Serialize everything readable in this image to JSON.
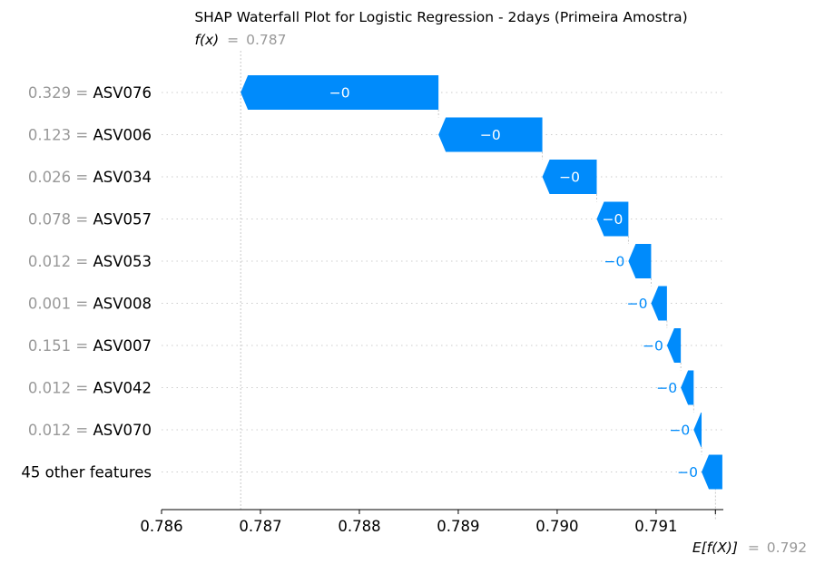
{
  "chart_data": {
    "type": "waterfall",
    "title": "SHAP Waterfall Plot for Logistic Regression - 2days (Primeira Amostra)",
    "fx": {
      "label": "f(x)",
      "eq": "=",
      "value": "0.787",
      "x": 0.7868
    },
    "efx": {
      "label": "E[f(X)]",
      "eq": "=",
      "value": "0.792",
      "x": 0.7916
    },
    "features": [
      {
        "value": "0.329",
        "eq": "=",
        "name": "ASV076",
        "label": "−0",
        "start": 0.7888,
        "end": 0.7868
      },
      {
        "value": "0.123",
        "eq": "=",
        "name": "ASV006",
        "label": "−0",
        "start": 0.78985,
        "end": 0.7888
      },
      {
        "value": "0.026",
        "eq": "=",
        "name": "ASV034",
        "label": "−0",
        "start": 0.7904,
        "end": 0.78985
      },
      {
        "value": "0.078",
        "eq": "=",
        "name": "ASV057",
        "label": "−0",
        "start": 0.79072,
        "end": 0.7904
      },
      {
        "value": "0.012",
        "eq": "=",
        "name": "ASV053",
        "label": "−0",
        "start": 0.79095,
        "end": 0.79072
      },
      {
        "value": "0.001",
        "eq": "=",
        "name": "ASV008",
        "label": "−0",
        "start": 0.79111,
        "end": 0.79095
      },
      {
        "value": "0.151",
        "eq": "=",
        "name": "ASV007",
        "label": "−0",
        "start": 0.79125,
        "end": 0.79111
      },
      {
        "value": "0.012",
        "eq": "=",
        "name": "ASV042",
        "label": "−0",
        "start": 0.79138,
        "end": 0.79125
      },
      {
        "value": "0.012",
        "eq": "=",
        "name": "ASV070",
        "label": "−0",
        "start": 0.79146,
        "end": 0.79138
      },
      {
        "value": "",
        "eq": "",
        "name": "45 other features",
        "label": "−0",
        "start": 0.79167,
        "end": 0.79146
      }
    ],
    "x_ticks": [
      "0.786",
      "0.787",
      "0.788",
      "0.789",
      "0.790",
      "0.791"
    ],
    "x_tick_values": [
      0.786,
      0.787,
      0.788,
      0.789,
      0.79,
      0.791
    ],
    "xlim": [
      0.786,
      0.79168
    ],
    "colors": {
      "negative": "#008bfb",
      "feature_value": "#999999",
      "text": "#000000",
      "grid": "#cccccc"
    }
  }
}
